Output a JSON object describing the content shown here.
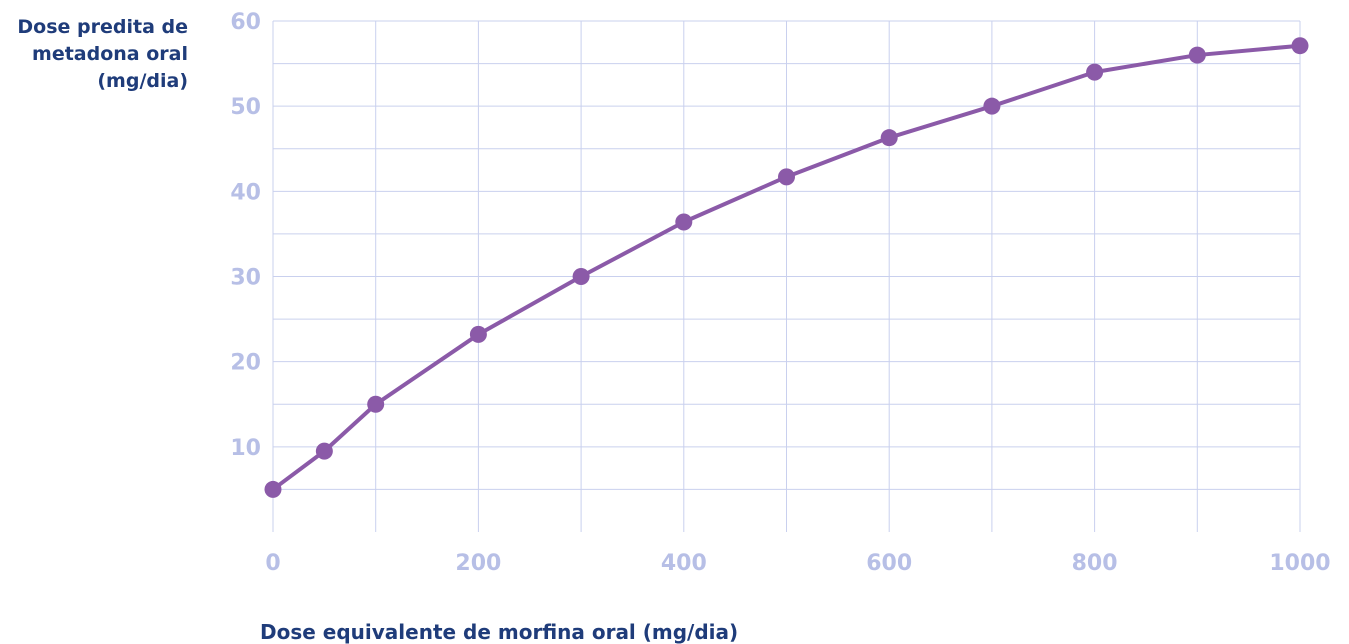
{
  "chart_data": {
    "type": "line",
    "title": "",
    "ylabel_lines": [
      "Dose predita de",
      "metadona oral",
      "(mg/dia)"
    ],
    "xlabel": "Dose equivalente de morfina oral (mg/dia)",
    "xlim": [
      0,
      1000
    ],
    "ylim": [
      0,
      60
    ],
    "x_ticks": [
      0,
      200,
      400,
      600,
      800,
      1000
    ],
    "x_tick_labels": [
      "0",
      "200",
      "400",
      "600",
      "800",
      "1000"
    ],
    "y_ticks": [
      10,
      20,
      30,
      40,
      50,
      60
    ],
    "y_tick_labels": [
      "10",
      "20",
      "30",
      "40",
      "50",
      "60"
    ],
    "grid": true,
    "series": [
      {
        "x": [
          0,
          50,
          100,
          200,
          300,
          400,
          500,
          600,
          700,
          800,
          900,
          1000
        ],
        "y": [
          5,
          9.5,
          15,
          23.2,
          30,
          36.4,
          41.7,
          46.3,
          50,
          54,
          56,
          57.1
        ]
      }
    ],
    "colors": {
      "line": "#8b5aa8",
      "marker": "#8b5aa8",
      "grid": "#c9d0ee",
      "tick_label": "#b7bfe6",
      "axis_title": "#1f3c7a"
    }
  }
}
